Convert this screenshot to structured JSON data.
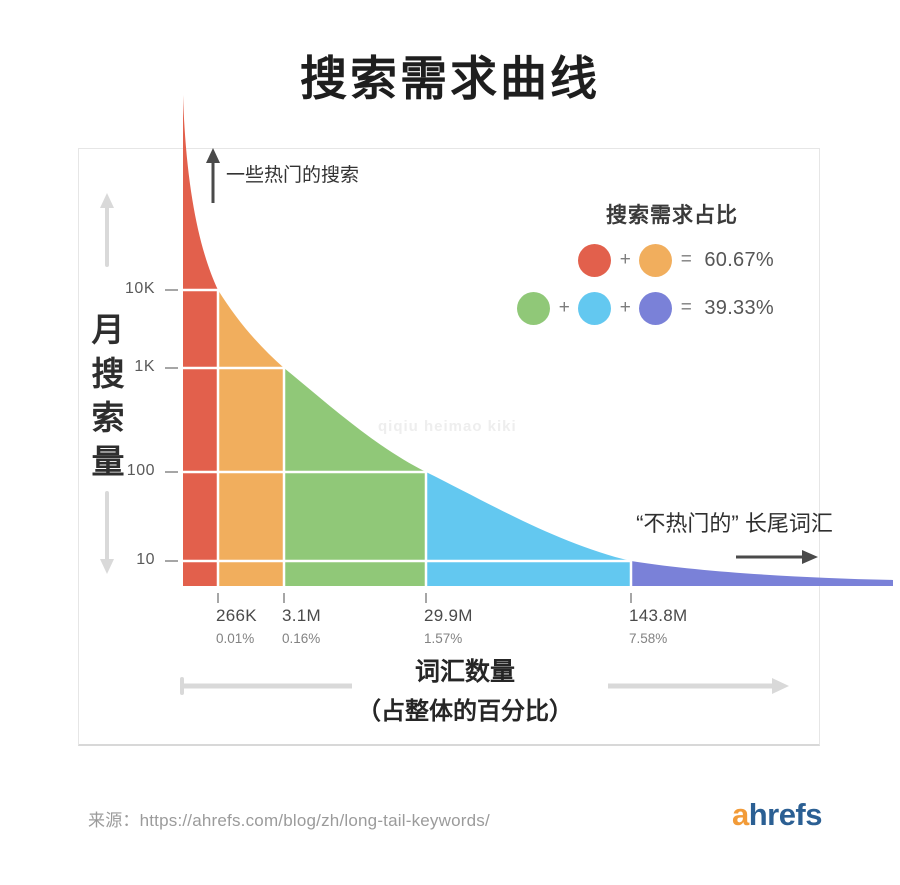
{
  "page": {
    "title": "搜索需求曲线",
    "watermark": "qiqiu heimao kiki"
  },
  "chart_data": {
    "type": "area",
    "title": "搜索需求曲线",
    "x_axis": {
      "label_line1": "词汇数量",
      "label_line2": "（占整体的百分比）",
      "ticks": [
        {
          "value": "266K",
          "pct": "0.01%"
        },
        {
          "value": "3.1M",
          "pct": "0.16%"
        },
        {
          "value": "29.9M",
          "pct": "1.57%"
        },
        {
          "value": "143.8M",
          "pct": "7.58%"
        }
      ]
    },
    "y_axis": {
      "label": "月搜索量",
      "label_chars": [
        "月",
        "搜",
        "索",
        "量"
      ],
      "scale": "log",
      "ticks": [
        "10K",
        "1K",
        "100",
        "10"
      ]
    },
    "segments": [
      {
        "id": "red",
        "color": "#e2604c",
        "keywords": "266K",
        "share_of_keywords": "0.01%",
        "volume_range": ">10K"
      },
      {
        "id": "orange",
        "color": "#f1ae5d",
        "keywords": "3.1M",
        "share_of_keywords": "0.16%",
        "volume_range": "1K-10K"
      },
      {
        "id": "green",
        "color": "#90c878",
        "keywords": "29.9M",
        "share_of_keywords": "1.57%",
        "volume_range": "100-1K"
      },
      {
        "id": "blue",
        "color": "#63c8f0",
        "keywords": "143.8M",
        "share_of_keywords": "7.58%",
        "volume_range": "10-100"
      },
      {
        "id": "purple",
        "color": "#7a81d8",
        "volume_range": "<10"
      }
    ],
    "legend": {
      "title": "搜索需求占比",
      "plus": "+",
      "equals": "=",
      "rows": [
        {
          "colors": [
            "#e2604c",
            "#f1ae5d"
          ],
          "value": "60.67%"
        },
        {
          "colors": [
            "#90c878",
            "#63c8f0",
            "#7a81d8"
          ],
          "value": "39.33%"
        }
      ]
    },
    "annotations": {
      "head": "一些热门的搜索",
      "tail": "“不热门的” 长尾词汇"
    }
  },
  "footer": {
    "source": "来源：https://ahrefs.com/blog/zh/long-tail-keywords/",
    "logo_a": "a",
    "logo_rest": "hrefs"
  },
  "colors": {
    "dark_arrow": "#4a4a4a",
    "light_arrow": "#d9d9d9",
    "tick": "#a6a6a6",
    "white_divider": "#ffffff",
    "logo_a": "#f29b38",
    "logo_rest": "#2b5f93"
  }
}
